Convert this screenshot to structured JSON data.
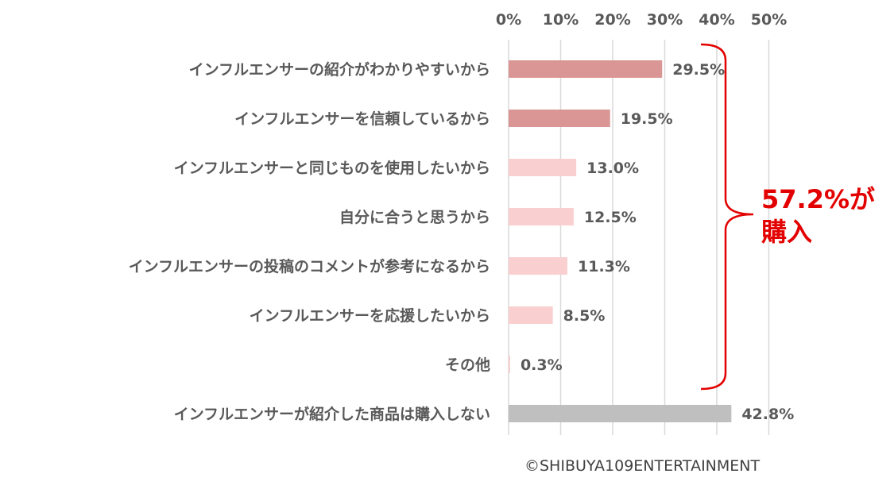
{
  "chart_data": {
    "type": "bar",
    "orientation": "horizontal",
    "xlim": [
      0,
      50
    ],
    "ticks": [
      "0%",
      "10%",
      "20%",
      "30%",
      "40%",
      "50%"
    ],
    "tick_values": [
      0,
      10,
      20,
      30,
      40,
      50
    ],
    "grid": "vertical",
    "categories": [
      "インフルエンサーの紹介がわかりやすいから",
      "インフルエンサーを信頼しているから",
      "インフルエンサーと同じものを使用したいから",
      "自分に合うと思うから",
      "インフルエンサーの投稿のコメントが参考になるから",
      "インフルエンサーを応援したいから",
      "その他",
      "インフルエンサーが紹介した商品は購入しない"
    ],
    "values": [
      29.5,
      19.5,
      13.0,
      12.5,
      11.3,
      8.5,
      0.3,
      42.8
    ],
    "data_labels": [
      "29.5%",
      "19.5%",
      "13.0%",
      "12.5%",
      "11.3%",
      "8.5%",
      "0.3%",
      "42.8%"
    ],
    "bar_colors": [
      "#d99694",
      "#d99694",
      "#f9cfd0",
      "#f9cfd0",
      "#f9cfd0",
      "#f9cfd0",
      "#f9cfd0",
      "#bfbfbf"
    ],
    "annotation": {
      "line1": "57.2%が",
      "line2": "購入",
      "color": "#e30000"
    }
  },
  "credit": "©SHIBUYA109ENTERTAINMENT"
}
